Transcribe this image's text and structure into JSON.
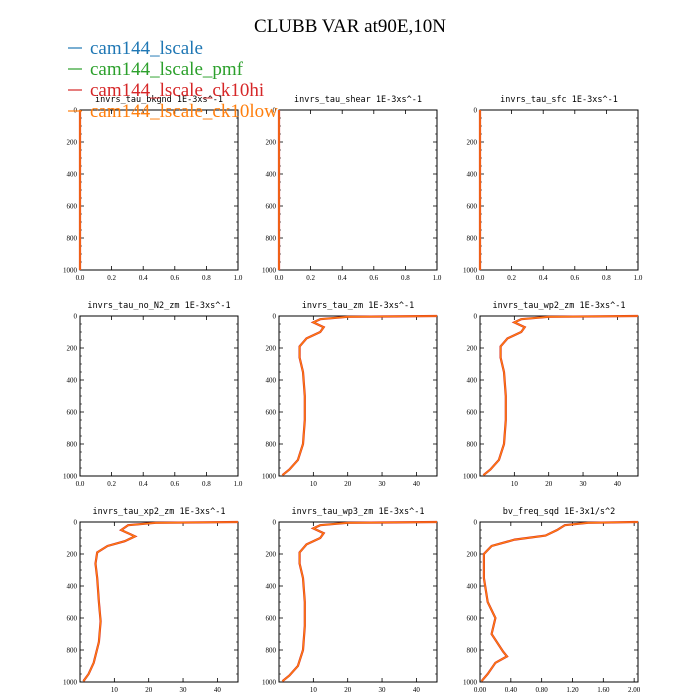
{
  "title": "CLUBB VAR at90E,10N",
  "legend": [
    {
      "name": "cam144_lscale",
      "color": "#1f77b4"
    },
    {
      "name": "cam144_lscale_pmf",
      "color": "#2ca02c"
    },
    {
      "name": "cam144_lscale_ck10hi",
      "color": "#d62728"
    },
    {
      "name": "cam144_lscale_ck10low",
      "color": "#ff7f0e"
    }
  ],
  "chart_data": [
    {
      "type": "line",
      "title": "invrs_tau_bkgnd   1E-3xs^-1",
      "xlim": [
        0,
        1
      ],
      "ylim": [
        1000,
        0
      ],
      "xticks": [
        "0.0",
        "0.2",
        "0.4",
        "0.6",
        "0.8",
        "1.0"
      ],
      "yticks": [
        "0",
        "200",
        "400",
        "600",
        "800",
        "1000"
      ],
      "profile": [
        [
          0,
          0
        ],
        [
          0,
          1000
        ]
      ]
    },
    {
      "type": "line",
      "title": "invrs_tau_shear   1E-3xs^-1",
      "xlim": [
        0,
        1
      ],
      "ylim": [
        1000,
        0
      ],
      "xticks": [
        "0.0",
        "0.2",
        "0.4",
        "0.6",
        "0.8",
        "1.0"
      ],
      "yticks": [
        "0",
        "200",
        "400",
        "600",
        "800",
        "1000"
      ],
      "profile": [
        [
          0,
          0
        ],
        [
          0,
          1000
        ]
      ]
    },
    {
      "type": "line",
      "title": "invrs_tau_sfc   1E-3xs^-1",
      "xlim": [
        0,
        1
      ],
      "ylim": [
        1000,
        0
      ],
      "xticks": [
        "0.0",
        "0.2",
        "0.4",
        "0.6",
        "0.8",
        "1.0"
      ],
      "yticks": [
        "0",
        "200",
        "400",
        "600",
        "800",
        "1000"
      ],
      "profile": [
        [
          0,
          0
        ],
        [
          0,
          1000
        ]
      ]
    },
    {
      "type": "line",
      "title": "invrs_tau_no_N2_zm   1E-3xs^-1",
      "xlim": [
        0,
        1
      ],
      "ylim": [
        1000,
        0
      ],
      "xticks": [
        "0.0",
        "0.2",
        "0.4",
        "0.6",
        "0.8",
        "1.0"
      ],
      "yticks": [
        "0",
        "200",
        "400",
        "600",
        "800",
        "1000"
      ],
      "profile": []
    },
    {
      "type": "line",
      "title": "invrs_tau_zm   1E-3xs^-1",
      "xlim": [
        0,
        46
      ],
      "ylim": [
        1000,
        0
      ],
      "xticks": [
        "10",
        "20",
        "30",
        "40"
      ],
      "yticks": [
        "0",
        "200",
        "400",
        "600",
        "800",
        "1000"
      ],
      "profile": [
        [
          46,
          0
        ],
        [
          20,
          5
        ],
        [
          12,
          20
        ],
        [
          10,
          40
        ],
        [
          13,
          70
        ],
        [
          12,
          100
        ],
        [
          8,
          140
        ],
        [
          6,
          190
        ],
        [
          6,
          260
        ],
        [
          7,
          350
        ],
        [
          7.5,
          500
        ],
        [
          7.5,
          650
        ],
        [
          7,
          800
        ],
        [
          5.5,
          900
        ],
        [
          3,
          960
        ],
        [
          1,
          995
        ]
      ]
    },
    {
      "type": "line",
      "title": "invrs_tau_wp2_zm   1E-3xs^-1",
      "xlim": [
        0,
        46
      ],
      "ylim": [
        1000,
        0
      ],
      "xticks": [
        "10",
        "20",
        "30",
        "40"
      ],
      "yticks": [
        "0",
        "200",
        "400",
        "600",
        "800",
        "1000"
      ],
      "profile": [
        [
          46,
          0
        ],
        [
          20,
          5
        ],
        [
          12,
          20
        ],
        [
          10,
          40
        ],
        [
          13,
          70
        ],
        [
          12,
          100
        ],
        [
          8,
          140
        ],
        [
          6,
          190
        ],
        [
          6,
          260
        ],
        [
          7,
          350
        ],
        [
          7.5,
          500
        ],
        [
          7.5,
          650
        ],
        [
          7,
          800
        ],
        [
          5.5,
          900
        ],
        [
          3,
          960
        ],
        [
          1,
          995
        ]
      ]
    },
    {
      "type": "line",
      "title": "invrs_tau_xp2_zm   1E-3xs^-1",
      "xlim": [
        0,
        46
      ],
      "ylim": [
        1000,
        0
      ],
      "xticks": [
        "10",
        "20",
        "30",
        "40"
      ],
      "yticks": [
        "0",
        "200",
        "400",
        "600",
        "800",
        "1000"
      ],
      "profile": [
        [
          46,
          0
        ],
        [
          22,
          5
        ],
        [
          14,
          20
        ],
        [
          12,
          50
        ],
        [
          16,
          90
        ],
        [
          13,
          120
        ],
        [
          8,
          150
        ],
        [
          5,
          190
        ],
        [
          4.5,
          260
        ],
        [
          5,
          350
        ],
        [
          5.5,
          500
        ],
        [
          6,
          620
        ],
        [
          5.5,
          750
        ],
        [
          4,
          880
        ],
        [
          2.5,
          950
        ],
        [
          1,
          995
        ]
      ]
    },
    {
      "type": "line",
      "title": "invrs_tau_wp3_zm   1E-3xs^-1",
      "xlim": [
        0,
        46
      ],
      "ylim": [
        1000,
        0
      ],
      "xticks": [
        "10",
        "20",
        "30",
        "40"
      ],
      "yticks": [
        "0",
        "200",
        "400",
        "600",
        "800",
        "1000"
      ],
      "profile": [
        [
          46,
          0
        ],
        [
          20,
          5
        ],
        [
          12,
          20
        ],
        [
          10,
          40
        ],
        [
          13,
          70
        ],
        [
          12,
          100
        ],
        [
          8,
          140
        ],
        [
          6,
          190
        ],
        [
          6,
          260
        ],
        [
          7,
          350
        ],
        [
          7.5,
          500
        ],
        [
          7.5,
          650
        ],
        [
          7,
          800
        ],
        [
          5.5,
          900
        ],
        [
          3,
          960
        ],
        [
          1,
          995
        ]
      ]
    },
    {
      "type": "line",
      "title": "bv_freq_sqd   1E-3x1/s^2",
      "xlim": [
        0,
        2.05
      ],
      "ylim": [
        1000,
        0
      ],
      "xticks": [
        "0.00",
        "0.40",
        "0.80",
        "1.20",
        "1.60",
        "2.00"
      ],
      "yticks": [
        "0",
        "200",
        "400",
        "600",
        "800",
        "1000"
      ],
      "profile": [
        [
          2.05,
          0
        ],
        [
          1.4,
          5
        ],
        [
          1.1,
          20
        ],
        [
          1.0,
          50
        ],
        [
          0.85,
          85
        ],
        [
          0.45,
          110
        ],
        [
          0.15,
          150
        ],
        [
          0.05,
          200
        ],
        [
          0.05,
          350
        ],
        [
          0.1,
          500
        ],
        [
          0.2,
          600
        ],
        [
          0.15,
          700
        ],
        [
          0.3,
          810
        ],
        [
          0.35,
          840
        ],
        [
          0.2,
          880
        ],
        [
          0.1,
          950
        ],
        [
          0.02,
          995
        ]
      ]
    }
  ]
}
